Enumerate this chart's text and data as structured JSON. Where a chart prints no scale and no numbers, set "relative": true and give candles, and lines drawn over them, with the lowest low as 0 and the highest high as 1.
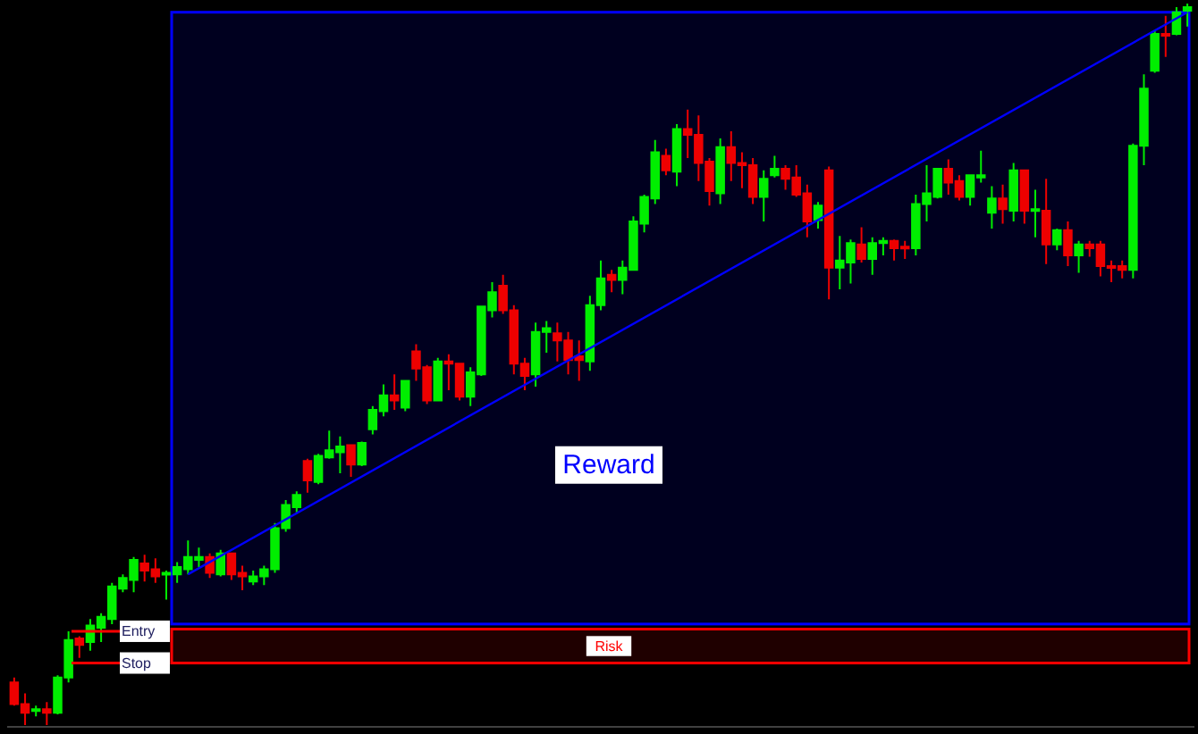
{
  "chart_data": {
    "type": "candlestick",
    "relative": true,
    "grid": false,
    "categories": [
      null,
      null,
      null,
      null,
      null,
      null,
      null,
      null,
      null,
      null,
      null,
      null,
      null,
      null,
      null,
      null,
      null,
      null,
      null,
      null,
      null,
      null,
      null,
      null,
      null,
      null,
      null,
      null,
      null,
      null,
      null,
      null,
      null,
      null,
      null,
      null,
      null,
      null,
      null,
      null,
      null,
      null,
      null,
      null,
      null,
      null,
      null,
      null,
      null,
      null,
      null,
      null,
      null,
      null,
      null,
      null,
      null,
      null,
      null,
      null,
      null,
      null,
      null,
      null,
      null,
      null,
      null,
      null,
      null,
      null,
      null,
      null,
      null,
      null,
      null,
      null,
      null,
      null,
      null,
      null,
      null,
      null,
      null,
      null,
      null,
      null,
      null,
      null,
      null,
      null,
      null,
      null,
      null,
      null,
      null,
      null,
      null,
      null,
      null,
      null,
      null,
      null,
      null,
      null,
      null,
      null,
      null,
      null,
      null
    ],
    "ohlc": [
      [
        0.059,
        0.066,
        0.027,
        0.029
      ],
      [
        0.029,
        0.044,
        0,
        0.017
      ],
      [
        0.02,
        0.027,
        0.012,
        0.022
      ],
      [
        0.022,
        0.032,
        0,
        0.017
      ],
      [
        0.017,
        0.069,
        0.015,
        0.066
      ],
      [
        0.066,
        0.13,
        0.059,
        0.118
      ],
      [
        0.12,
        0.123,
        0.093,
        0.111
      ],
      [
        0.115,
        0.147,
        0.103,
        0.138
      ],
      [
        0.135,
        0.155,
        0.115,
        0.15
      ],
      [
        0.147,
        0.197,
        0.14,
        0.192
      ],
      [
        0.189,
        0.209,
        0.184,
        0.204
      ],
      [
        0.201,
        0.233,
        0.184,
        0.229
      ],
      [
        0.224,
        0.236,
        0.199,
        0.214
      ],
      [
        0.216,
        0.231,
        0.197,
        0.206
      ],
      [
        0.209,
        0.214,
        0.174,
        0.211
      ],
      [
        0.209,
        0.226,
        0.197,
        0.219
      ],
      [
        0.216,
        0.256,
        0.209,
        0.233
      ],
      [
        0.229,
        0.246,
        0.219,
        0.233
      ],
      [
        0.233,
        0.238,
        0.204,
        0.211
      ],
      [
        0.209,
        0.243,
        0.206,
        0.238
      ],
      [
        0.238,
        0.238,
        0.201,
        0.209
      ],
      [
        0.211,
        0.221,
        0.187,
        0.206
      ],
      [
        0.199,
        0.214,
        0.194,
        0.206
      ],
      [
        0.206,
        0.221,
        0.194,
        0.216
      ],
      [
        0.216,
        0.28,
        0.211,
        0.273
      ],
      [
        0.273,
        0.312,
        0.268,
        0.305
      ],
      [
        0.302,
        0.324,
        0.295,
        0.319
      ],
      [
        0.366,
        0.369,
        0.322,
        0.339
      ],
      [
        0.337,
        0.376,
        0.334,
        0.373
      ],
      [
        0.371,
        0.408,
        0.369,
        0.381
      ],
      [
        0.378,
        0.4,
        0.349,
        0.386
      ],
      [
        0.388,
        0.388,
        0.344,
        0.361
      ],
      [
        0.361,
        0.393,
        0.359,
        0.391
      ],
      [
        0.41,
        0.442,
        0.403,
        0.437
      ],
      [
        0.435,
        0.472,
        0.428,
        0.457
      ],
      [
        0.457,
        0.486,
        0.437,
        0.45
      ],
      [
        0.44,
        0.477,
        0.435,
        0.477
      ],
      [
        0.518,
        0.528,
        0.477,
        0.494
      ],
      [
        0.496,
        0.499,
        0.445,
        0.45
      ],
      [
        0.45,
        0.509,
        0.45,
        0.504
      ],
      [
        0.504,
        0.514,
        0.464,
        0.501
      ],
      [
        0.501,
        0.501,
        0.45,
        0.455
      ],
      [
        0.455,
        0.496,
        0.442,
        0.489
      ],
      [
        0.486,
        0.58,
        0.484,
        0.58
      ],
      [
        0.575,
        0.614,
        0.565,
        0.6
      ],
      [
        0.609,
        0.624,
        0.57,
        0.575
      ],
      [
        0.575,
        0.582,
        0.486,
        0.501
      ],
      [
        0.501,
        0.509,
        0.464,
        0.484
      ],
      [
        0.486,
        0.558,
        0.469,
        0.545
      ],
      [
        0.545,
        0.56,
        0.516,
        0.55
      ],
      [
        0.543,
        0.558,
        0.504,
        0.533
      ],
      [
        0.533,
        0.545,
        0.486,
        0.506
      ],
      [
        0.511,
        0.533,
        0.477,
        0.506
      ],
      [
        0.504,
        0.595,
        0.491,
        0.582
      ],
      [
        0.582,
        0.644,
        0.575,
        0.619
      ],
      [
        0.624,
        0.631,
        0.6,
        0.617
      ],
      [
        0.617,
        0.644,
        0.597,
        0.634
      ],
      [
        0.631,
        0.705,
        0.631,
        0.698
      ],
      [
        0.695,
        0.735,
        0.683,
        0.732
      ],
      [
        0.73,
        0.811,
        0.722,
        0.794
      ],
      [
        0.789,
        0.799,
        0.762,
        0.769
      ],
      [
        0.767,
        0.833,
        0.747,
        0.826
      ],
      [
        0.826,
        0.853,
        0.786,
        0.818
      ],
      [
        0.818,
        0.845,
        0.754,
        0.779
      ],
      [
        0.781,
        0.786,
        0.72,
        0.74
      ],
      [
        0.737,
        0.813,
        0.722,
        0.801
      ],
      [
        0.801,
        0.823,
        0.754,
        0.779
      ],
      [
        0.779,
        0.794,
        0.744,
        0.776
      ],
      [
        0.776,
        0.786,
        0.722,
        0.732
      ],
      [
        0.732,
        0.769,
        0.698,
        0.757
      ],
      [
        0.762,
        0.789,
        0.759,
        0.771
      ],
      [
        0.771,
        0.776,
        0.742,
        0.757
      ],
      [
        0.759,
        0.776,
        0.732,
        0.735
      ],
      [
        0.737,
        0.749,
        0.676,
        0.698
      ],
      [
        0.7,
        0.725,
        0.688,
        0.72
      ],
      [
        0.769,
        0.774,
        0.59,
        0.634
      ],
      [
        0.634,
        0.678,
        0.604,
        0.644
      ],
      [
        0.641,
        0.673,
        0.612,
        0.668
      ],
      [
        0.666,
        0.69,
        0.641,
        0.646
      ],
      [
        0.646,
        0.676,
        0.624,
        0.668
      ],
      [
        0.668,
        0.676,
        0.651,
        0.671
      ],
      [
        0.671,
        0.673,
        0.644,
        0.661
      ],
      [
        0.663,
        0.671,
        0.646,
        0.661
      ],
      [
        0.661,
        0.735,
        0.651,
        0.722
      ],
      [
        0.722,
        0.776,
        0.698,
        0.737
      ],
      [
        0.732,
        0.771,
        0.73,
        0.771
      ],
      [
        0.771,
        0.784,
        0.735,
        0.752
      ],
      [
        0.754,
        0.762,
        0.727,
        0.732
      ],
      [
        0.732,
        0.762,
        0.72,
        0.762
      ],
      [
        0.759,
        0.796,
        0.752,
        0.762
      ],
      [
        0.71,
        0.747,
        0.688,
        0.73
      ],
      [
        0.73,
        0.749,
        0.695,
        0.715
      ],
      [
        0.713,
        0.779,
        0.698,
        0.769
      ],
      [
        0.769,
        0.769,
        0.695,
        0.713
      ],
      [
        0.713,
        0.742,
        0.676,
        0.715
      ],
      [
        0.713,
        0.757,
        0.639,
        0.666
      ],
      [
        0.666,
        0.688,
        0.658,
        0.686
      ],
      [
        0.686,
        0.698,
        0.636,
        0.651
      ],
      [
        0.651,
        0.671,
        0.627,
        0.666
      ],
      [
        0.666,
        0.671,
        0.649,
        0.661
      ],
      [
        0.666,
        0.671,
        0.622,
        0.636
      ],
      [
        0.636,
        0.644,
        0.614,
        0.634
      ],
      [
        0.636,
        0.644,
        0.619,
        0.631
      ],
      [
        0.631,
        0.806,
        0.619,
        0.803
      ],
      [
        0.803,
        0.902,
        0.776,
        0.882
      ],
      [
        0.907,
        0.963,
        0.904,
        0.958
      ],
      [
        0.958,
        0.983,
        0.926,
        0.956
      ],
      [
        0.958,
        0.995,
        0.956,
        0.988
      ],
      [
        0.99,
        1,
        0.968,
        0.995
      ]
    ],
    "series": [
      {
        "type": "line",
        "color": "#0000ff",
        "values": [
          null,
          null,
          null,
          null,
          null,
          null,
          null,
          null,
          null,
          null,
          null,
          null,
          null,
          null,
          null,
          null,
          0.209,
          null,
          null,
          null,
          null,
          null,
          null,
          null,
          null,
          null,
          null,
          null,
          null,
          null,
          null,
          null,
          null,
          null,
          null,
          null,
          null,
          null,
          null,
          null,
          null,
          null,
          null,
          null,
          null,
          null,
          null,
          null,
          null,
          null,
          null,
          null,
          null,
          null,
          null,
          null,
          null,
          null,
          null,
          null,
          null,
          null,
          null,
          null,
          null,
          null,
          null,
          null,
          null,
          null,
          null,
          null,
          null,
          null,
          null,
          null,
          null,
          null,
          null,
          null,
          null,
          null,
          null,
          null,
          null,
          null,
          null,
          null,
          null,
          null,
          null,
          null,
          null,
          null,
          null,
          null,
          null,
          null,
          null,
          null,
          null,
          null,
          null,
          null,
          null,
          null,
          null,
          null,
          0.988
        ]
      }
    ],
    "ref_lines": [
      {
        "axis": "y",
        "value": 0.13,
        "label": "Entry",
        "color": "#ff0000"
      },
      {
        "axis": "y",
        "value": 0.086,
        "label": "Stop",
        "color": "#ff0000"
      }
    ],
    "bands": [
      {
        "axis": "y",
        "from": 0.14,
        "to": 0.988,
        "label": "Reward",
        "color": "#0000ff"
      },
      {
        "axis": "y",
        "from": 0.086,
        "to": 0.133,
        "label": "Risk",
        "color": "#ff0000"
      }
    ]
  }
}
